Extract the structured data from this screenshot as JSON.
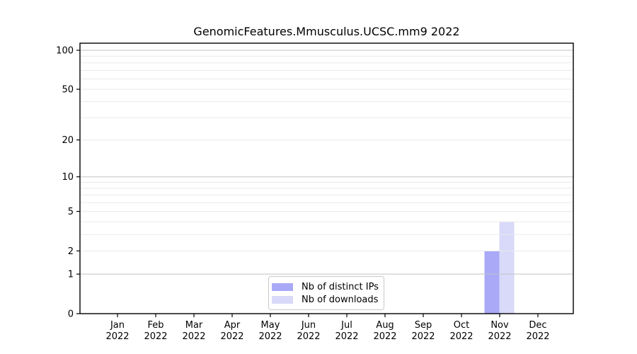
{
  "chart_data": {
    "type": "bar",
    "title": "GenomicFeatures.Mmusculus.UCSC.mm9 2022",
    "x": {
      "months": [
        "Jan",
        "Feb",
        "Mar",
        "Apr",
        "May",
        "Jun",
        "Jul",
        "Aug",
        "Sep",
        "Oct",
        "Nov",
        "Dec"
      ],
      "year": "2022"
    },
    "y_axis": {
      "scale": "log1p",
      "tick_values": [
        0,
        1,
        2,
        5,
        10,
        20,
        50,
        100
      ],
      "major_gridlines": [
        1,
        10,
        100
      ],
      "minor_gridlines": [
        2,
        3,
        4,
        5,
        6,
        7,
        8,
        9,
        20,
        30,
        40,
        50,
        60,
        70,
        80,
        90
      ]
    },
    "series": [
      {
        "name": "Nb of distinct IPs",
        "color": "#a9a9f8",
        "values": [
          0,
          0,
          0,
          0,
          0,
          0,
          0,
          0,
          0,
          0,
          2,
          0
        ]
      },
      {
        "name": "Nb of downloads",
        "color": "#d9d9f9",
        "values": [
          0,
          0,
          0,
          0,
          0,
          0,
          0,
          0,
          0,
          0,
          4,
          0
        ]
      }
    ],
    "legend": {
      "position": "bottom-center-inside"
    },
    "grid": "horizontal-only",
    "colors": {
      "spine": "#000000",
      "major_grid": "#c3c3c3",
      "minor_grid": "#eaeaea",
      "text": "#000000"
    }
  }
}
